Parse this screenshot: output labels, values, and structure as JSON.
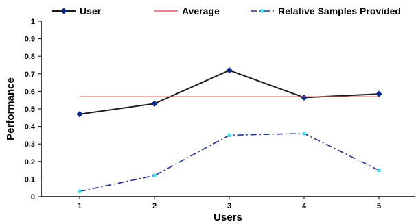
{
  "chart_data": {
    "type": "line",
    "title": "",
    "xlabel": "Users",
    "ylabel": "Performance",
    "categories": [
      "1",
      "2",
      "3",
      "4",
      "5"
    ],
    "x": [
      1,
      2,
      3,
      4,
      5
    ],
    "ylim": [
      0,
      1
    ],
    "yticks": [
      "0",
      "0.1",
      "0.2",
      "0.3",
      "0.4",
      "0.5",
      "0.6",
      "0.7",
      "0.8",
      "0.9",
      "1"
    ],
    "grid": false,
    "legend_position": "top",
    "series": [
      {
        "name": "User",
        "values": [
          0.47,
          0.53,
          0.72,
          0.565,
          0.585
        ],
        "color": "#1a1a1a",
        "style": "solid",
        "marker": "diamond",
        "marker_color": "#0a2a8a"
      },
      {
        "name": "Average",
        "values": [
          0.57,
          0.57,
          0.57,
          0.57,
          0.57
        ],
        "color": "#e06060",
        "style": "solid",
        "marker": "none"
      },
      {
        "name": "Relative Samples Provided",
        "values": [
          0.03,
          0.12,
          0.35,
          0.36,
          0.15
        ],
        "color": "#1e2e8e",
        "style": "dash-dot",
        "marker": "square",
        "marker_color": "#40e0f0"
      }
    ]
  }
}
